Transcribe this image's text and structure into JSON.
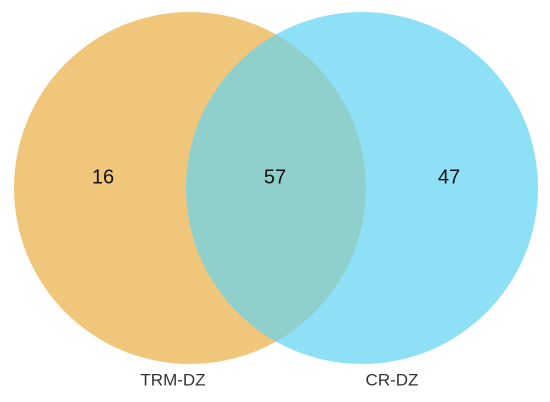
{
  "chart_data": {
    "type": "venn",
    "series": [
      {
        "name": "TRM-DZ",
        "color": "#f0c67a",
        "only": 16
      },
      {
        "name": "CR-DZ",
        "color": "#8ee0f7",
        "only": 47
      }
    ],
    "overlap": {
      "color": "#8fd0cd",
      "value": 57
    }
  }
}
